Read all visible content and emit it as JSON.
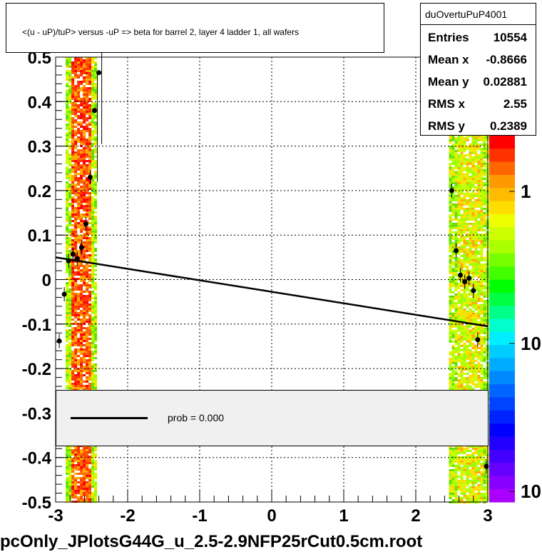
{
  "title": "<(u - uP)/tuP> versus  -uP => beta for barrel 2, layer 4 ladder 1, all wafers",
  "footer": "pcOnly_JPlotsG44G_u_2.5-2.9NFP25rCut0.5cm.root",
  "stats": {
    "name": "duOvertuPuP4001",
    "rows": [
      {
        "label": "Entries",
        "value": "10554"
      },
      {
        "label": "Mean x",
        "value": "-0.8666"
      },
      {
        "label": "Mean y",
        "value": "0.02881"
      },
      {
        "label": "RMS x",
        "value": "2.55"
      },
      {
        "label": "RMS y",
        "value": "0.2389"
      }
    ]
  },
  "legend": {
    "label": "prob = 0.000"
  },
  "colors": {
    "fit_line": "#000000",
    "legend_bg": "#f0f0f0",
    "points": "#000000"
  },
  "chart_data": {
    "type": "scatter",
    "xlim": [
      -3,
      3
    ],
    "ylim": [
      -0.5,
      0.5
    ],
    "x_ticks": [
      "-3",
      "-2",
      "-1",
      "0",
      "1",
      "2",
      "3"
    ],
    "y_ticks": [
      "-0.5",
      "-0.4",
      "-0.3",
      "-0.2",
      "-0.1",
      "0",
      "0.1",
      "0.2",
      "0.3",
      "0.4",
      "0.5"
    ],
    "grid": true,
    "colorbar_ticks": [
      "1",
      "10",
      "10"
    ],
    "profile_points": [
      {
        "x": -2.95,
        "y": -0.138
      },
      {
        "x": -2.88,
        "y": -0.033
      },
      {
        "x": -2.82,
        "y": 0.042
      },
      {
        "x": -2.76,
        "y": 0.057
      },
      {
        "x": -2.7,
        "y": 0.047
      },
      {
        "x": -2.64,
        "y": 0.072
      },
      {
        "x": -2.58,
        "y": 0.125
      },
      {
        "x": -2.52,
        "y": 0.23
      },
      {
        "x": -2.46,
        "y": 0.38
      },
      {
        "x": -2.4,
        "y": 0.465
      },
      {
        "x": 2.5,
        "y": 0.2
      },
      {
        "x": 2.56,
        "y": 0.065
      },
      {
        "x": 2.62,
        "y": 0.01
      },
      {
        "x": 2.68,
        "y": -0.005
      },
      {
        "x": 2.74,
        "y": 0.003
      },
      {
        "x": 2.8,
        "y": -0.025
      },
      {
        "x": 2.86,
        "y": -0.135
      },
      {
        "x": 2.98,
        "y": -0.42
      }
    ],
    "fit_line": {
      "x": [
        -3.0,
        3.0
      ],
      "y": [
        0.05,
        -0.105
      ]
    },
    "bands": [
      {
        "x_min": -2.86,
        "x_max": -2.46,
        "y_min": -0.5,
        "y_max": 0.5
      },
      {
        "x_min": 2.46,
        "x_max": 3.0,
        "y_min": -0.5,
        "y_max": 0.33
      }
    ]
  }
}
